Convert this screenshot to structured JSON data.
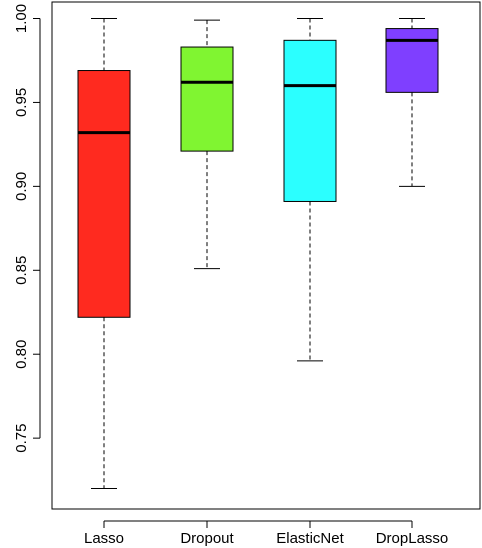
{
  "chart_data": {
    "type": "box",
    "title": "",
    "xlabel": "",
    "ylabel": "",
    "ylim": [
      0.72,
      1.0
    ],
    "yticks": [
      0.75,
      0.8,
      0.85,
      0.9,
      0.95,
      1.0
    ],
    "ytick_labels": [
      "0.75",
      "0.80",
      "0.85",
      "0.90",
      "0.95",
      "1.00"
    ],
    "grid": false,
    "categories": [
      "Lasso",
      "Dropout",
      "ElasticNet",
      "DropLasso"
    ],
    "boxes": [
      {
        "category": "Lasso",
        "min": 0.72,
        "q1": 0.822,
        "median": 0.932,
        "q3": 0.969,
        "max": 1.0,
        "color": "#ff2a1f"
      },
      {
        "category": "Dropout",
        "min": 0.851,
        "q1": 0.921,
        "median": 0.962,
        "q3": 0.983,
        "max": 0.999,
        "color": "#80f531"
      },
      {
        "category": "ElasticNet",
        "min": 0.796,
        "q1": 0.891,
        "median": 0.96,
        "q3": 0.987,
        "max": 1.0,
        "color": "#2bffff"
      },
      {
        "category": "DropLasso",
        "min": 0.9,
        "q1": 0.956,
        "median": 0.987,
        "q3": 0.994,
        "max": 1.0,
        "color": "#7f3fff"
      }
    ]
  }
}
